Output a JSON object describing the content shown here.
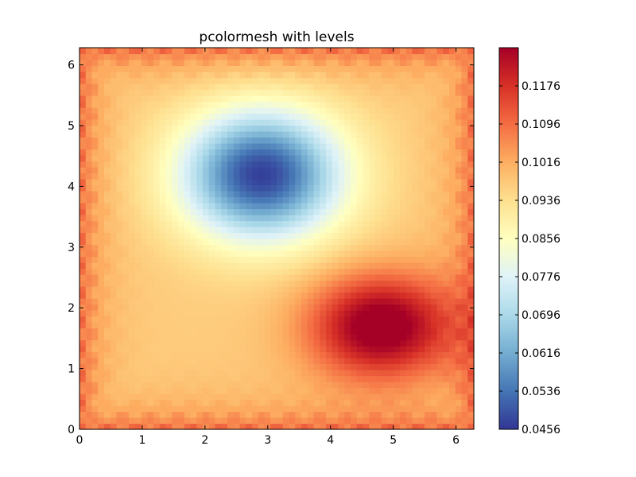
{
  "chart_data": {
    "type": "heatmap",
    "title": "pcolormesh with levels",
    "xlabel": "",
    "ylabel": "",
    "xlim": [
      0,
      6.2832
    ],
    "ylim": [
      0,
      6.2832
    ],
    "x_ticks": [
      "0",
      "1",
      "2",
      "3",
      "4",
      "5",
      "6"
    ],
    "y_ticks": [
      "0",
      "1",
      "2",
      "3",
      "4",
      "5",
      "6"
    ],
    "grid": false,
    "colormap": "RdYlBu_r",
    "colormap_stops": [
      "#313695",
      "#4575b4",
      "#74add1",
      "#abd9e9",
      "#e0f3f8",
      "#ffffbf",
      "#fee090",
      "#fdae61",
      "#f46d43",
      "#d73027",
      "#a50026"
    ],
    "value_range": [
      0.0456,
      0.1256
    ],
    "colorbar_ticks": [
      "0.0456",
      "0.0536",
      "0.0616",
      "0.0696",
      "0.0776",
      "0.0856",
      "0.0936",
      "0.1016",
      "0.1096",
      "0.1176"
    ],
    "grid_cells": 64,
    "blobs": [
      {
        "cx": 2.9,
        "cy": 4.2,
        "amplitude": -0.05,
        "sx": 0.9,
        "sy": 0.75,
        "sign": "low"
      },
      {
        "cx": 4.8,
        "cy": 1.7,
        "amplitude": 0.033,
        "sx": 0.8,
        "sy": 0.6,
        "sign": "high"
      }
    ],
    "base_level": 0.0968
  }
}
